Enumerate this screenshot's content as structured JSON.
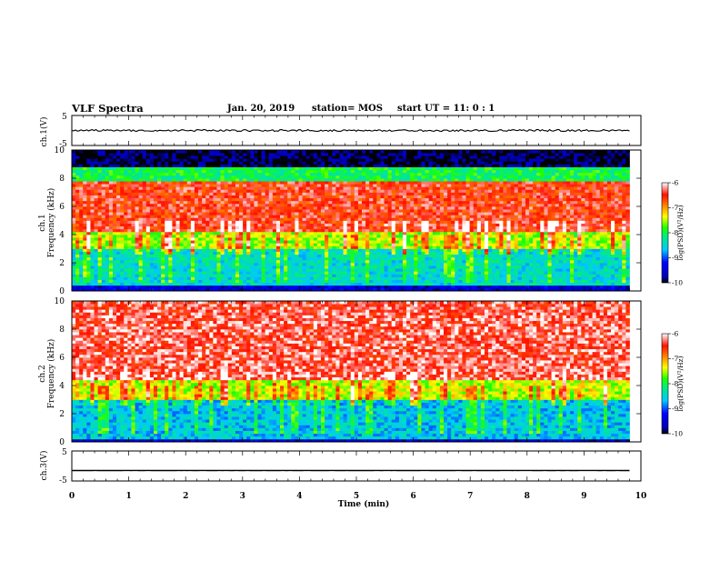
{
  "header": {
    "title": "VLF Spectra",
    "date": "Jan. 20, 2019",
    "station": "station= MOS",
    "start": "start  UT =   11: 0  : 1"
  },
  "chart_data": [
    {
      "type": "line",
      "panel": "ch1-waveform",
      "ylabel": "ch.1(V)",
      "y_ticks": [
        "5",
        "-5"
      ],
      "ylim": [
        -5,
        5
      ],
      "xlim": [
        0,
        10
      ],
      "series": [
        {
          "x": [
            0,
            9.8
          ],
          "y": [
            0,
            0
          ]
        }
      ]
    },
    {
      "type": "heatmap",
      "panel": "ch1-spectrogram",
      "ylabel": "ch.1\nFrequency (kHz)",
      "y_ticks": [
        "0",
        "2",
        "4",
        "6",
        "8",
        "10"
      ],
      "ylim": [
        0,
        10
      ],
      "xlim": [
        0,
        10
      ],
      "data_end_min": 9.8,
      "colorbar": {
        "label": "log(PSD)(V²/Hz)",
        "ticks": [
          "-6",
          "-7",
          "-8",
          "-9",
          "-10"
        ],
        "range": [
          -10,
          -6
        ]
      },
      "bands_khz_log_psd": [
        [
          0,
          0.4,
          -10
        ],
        [
          0.4,
          3,
          -8.7
        ],
        [
          3,
          4.2,
          -7.7
        ],
        [
          4.2,
          7.8,
          -6.4
        ],
        [
          7.8,
          8.8,
          -8.2
        ],
        [
          8.8,
          10,
          -10.5
        ]
      ]
    },
    {
      "type": "heatmap",
      "panel": "ch2-spectrogram",
      "ylabel": "ch.2\nFrequency (kHz)",
      "y_ticks": [
        "0",
        "2",
        "4",
        "6",
        "8",
        "10"
      ],
      "ylim": [
        0,
        10
      ],
      "xlim": [
        0,
        10
      ],
      "data_end_min": 9.8,
      "colorbar": {
        "label": "log(PSD)(V²/Hz)",
        "ticks": [
          "-6",
          "-7",
          "-8",
          "-9",
          "-10"
        ],
        "range": [
          -10,
          -6
        ]
      },
      "bands_khz_log_psd": [
        [
          0,
          0.3,
          -10
        ],
        [
          0.3,
          3,
          -8.9
        ],
        [
          3,
          4.5,
          -7.6
        ],
        [
          4.5,
          10,
          -6.2
        ]
      ]
    },
    {
      "type": "line",
      "panel": "ch3-waveform",
      "ylabel": "ch.3(V)",
      "y_ticks": [
        "5",
        "-5"
      ],
      "ylim": [
        -5,
        5
      ],
      "xlim": [
        0,
        10
      ],
      "xlabel": "Time (min)",
      "x_ticks": [
        "0",
        "1",
        "2",
        "3",
        "4",
        "5",
        "6",
        "7",
        "8",
        "9",
        "10"
      ],
      "series": [
        {
          "x": [
            0,
            9.8
          ],
          "y": [
            -1.5,
            -1.5
          ]
        }
      ]
    }
  ]
}
